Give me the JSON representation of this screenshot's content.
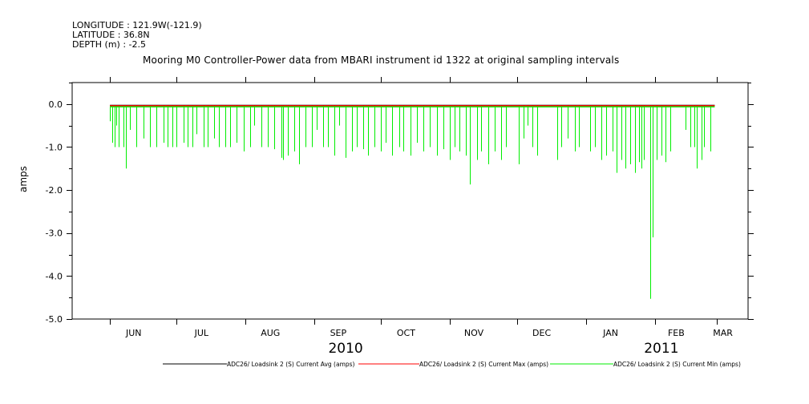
{
  "header": {
    "longitude": "LONGITUDE : 121.9W(-121.9)",
    "latitude": "LATITUDE : 36.8N",
    "depth": "DEPTH (m) : -2.5"
  },
  "chart_data": {
    "type": "line",
    "title": "Mooring M0 Controller-Power data from MBARI instrument id 1322 at original sampling intervals",
    "ylabel": "amps",
    "xlabel": "",
    "ylim": [
      -5.0,
      0.5
    ],
    "yticks": [
      "0.0",
      "-1.0",
      "-2.0",
      "-3.0",
      "-4.0",
      "-5.0"
    ],
    "ytick_values": [
      0,
      -1,
      -2,
      -3,
      -4,
      -5
    ],
    "month_labels": [
      "JUN",
      "JUL",
      "AUG",
      "SEP",
      "OCT",
      "NOV",
      "DEC",
      "JAN",
      "FEB",
      "MAR"
    ],
    "year_labels": [
      "2010",
      "2011"
    ],
    "x_range": [
      "2010-05-15",
      "2011-03-15"
    ],
    "series": [
      {
        "name": "ADC26/ Loadsink 2 (S) Current Avg (amps)",
        "color": "#000000",
        "baseline": -0.03,
        "x_range": [
          "2010-06-01",
          "2011-02-28"
        ]
      },
      {
        "name": "ADC26/ Loadsink 2 (S) Current Max (amps)",
        "color": "#ff0000",
        "baseline": -0.03,
        "x_range": [
          "2010-06-01",
          "2011-02-28"
        ]
      },
      {
        "name": "ADC26/ Loadsink 2 (S) Current Min (amps)",
        "color": "#00ee00",
        "baseline": -0.05,
        "x_range": [
          "2010-06-01",
          "2011-02-28"
        ],
        "spikes": [
          [
            "2010-06-01",
            -0.4
          ],
          [
            "2010-06-02",
            -0.9
          ],
          [
            "2010-06-03",
            -1.0
          ],
          [
            "2010-06-04",
            -0.5
          ],
          [
            "2010-06-05",
            -1.0
          ],
          [
            "2010-06-07",
            -1.0
          ],
          [
            "2010-06-08",
            -1.5
          ],
          [
            "2010-06-10",
            -0.6
          ],
          [
            "2010-06-13",
            -1.0
          ],
          [
            "2010-06-16",
            -0.8
          ],
          [
            "2010-06-19",
            -1.0
          ],
          [
            "2010-06-22",
            -1.0
          ],
          [
            "2010-06-25",
            -0.9
          ],
          [
            "2010-06-27",
            -1.0
          ],
          [
            "2010-06-29",
            -1.0
          ],
          [
            "2010-07-01",
            -1.0
          ],
          [
            "2010-07-04",
            -0.9
          ],
          [
            "2010-07-06",
            -1.0
          ],
          [
            "2010-07-08",
            -1.0
          ],
          [
            "2010-07-10",
            -0.7
          ],
          [
            "2010-07-13",
            -1.0
          ],
          [
            "2010-07-15",
            -1.0
          ],
          [
            "2010-07-18",
            -0.8
          ],
          [
            "2010-07-20",
            -1.0
          ],
          [
            "2010-07-23",
            -1.0
          ],
          [
            "2010-07-25",
            -1.0
          ],
          [
            "2010-07-28",
            -0.9
          ],
          [
            "2010-07-31",
            -1.1
          ],
          [
            "2010-08-03",
            -1.0
          ],
          [
            "2010-08-05",
            -0.5
          ],
          [
            "2010-08-08",
            -1.0
          ],
          [
            "2010-08-11",
            -1.0
          ],
          [
            "2010-08-14",
            -1.05
          ],
          [
            "2010-08-17",
            -1.25
          ],
          [
            "2010-08-18",
            -1.3
          ],
          [
            "2010-08-20",
            -1.2
          ],
          [
            "2010-08-23",
            -1.1
          ],
          [
            "2010-08-25",
            -1.4
          ],
          [
            "2010-08-28",
            -1.0
          ],
          [
            "2010-08-31",
            -1.0
          ],
          [
            "2010-09-02",
            -0.6
          ],
          [
            "2010-09-05",
            -1.0
          ],
          [
            "2010-09-07",
            -1.0
          ],
          [
            "2010-09-10",
            -1.2
          ],
          [
            "2010-09-12",
            -0.5
          ],
          [
            "2010-09-15",
            -1.25
          ],
          [
            "2010-09-18",
            -1.1
          ],
          [
            "2010-09-20",
            -1.0
          ],
          [
            "2010-09-23",
            -1.05
          ],
          [
            "2010-09-25",
            -1.2
          ],
          [
            "2010-09-28",
            -1.0
          ],
          [
            "2010-10-01",
            -1.1
          ],
          [
            "2010-10-03",
            -0.9
          ],
          [
            "2010-10-06",
            -1.2
          ],
          [
            "2010-10-09",
            -1.0
          ],
          [
            "2010-10-11",
            -1.1
          ],
          [
            "2010-10-14",
            -1.2
          ],
          [
            "2010-10-17",
            -0.9
          ],
          [
            "2010-10-20",
            -1.1
          ],
          [
            "2010-10-23",
            -1.0
          ],
          [
            "2010-10-26",
            -1.2
          ],
          [
            "2010-10-29",
            -1.05
          ],
          [
            "2010-11-01",
            -1.3
          ],
          [
            "2010-11-03",
            -1.0
          ],
          [
            "2010-11-05",
            -1.1
          ],
          [
            "2010-11-08",
            -1.2
          ],
          [
            "2010-11-10",
            -1.87
          ],
          [
            "2010-11-13",
            -1.3
          ],
          [
            "2010-11-15",
            -1.1
          ],
          [
            "2010-11-18",
            -1.4
          ],
          [
            "2010-11-21",
            -1.1
          ],
          [
            "2010-11-24",
            -1.3
          ],
          [
            "2010-11-26",
            -1.0
          ],
          [
            "2010-12-02",
            -1.4
          ],
          [
            "2010-12-04",
            -0.8
          ],
          [
            "2010-12-06",
            -0.5
          ],
          [
            "2010-12-08",
            -1.0
          ],
          [
            "2010-12-10",
            -1.2
          ],
          [
            "2010-12-19",
            -1.3
          ],
          [
            "2010-12-21",
            -1.0
          ],
          [
            "2010-12-24",
            -0.8
          ],
          [
            "2010-12-27",
            -1.1
          ],
          [
            "2010-12-29",
            -1.0
          ],
          [
            "2011-01-03",
            -1.1
          ],
          [
            "2011-01-05",
            -1.0
          ],
          [
            "2011-01-08",
            -1.3
          ],
          [
            "2011-01-10",
            -1.2
          ],
          [
            "2011-01-13",
            -1.1
          ],
          [
            "2011-01-15",
            -1.6
          ],
          [
            "2011-01-17",
            -1.3
          ],
          [
            "2011-01-19",
            -1.5
          ],
          [
            "2011-01-21",
            -1.4
          ],
          [
            "2011-01-23",
            -1.6
          ],
          [
            "2011-01-25",
            -1.35
          ],
          [
            "2011-01-26",
            -1.5
          ],
          [
            "2011-01-27",
            -1.3
          ],
          [
            "2011-01-30",
            -4.53
          ],
          [
            "2011-01-31",
            -3.1
          ],
          [
            "2011-02-02",
            -1.3
          ],
          [
            "2011-02-04",
            -1.2
          ],
          [
            "2011-02-06",
            -1.35
          ],
          [
            "2011-02-08",
            -1.1
          ],
          [
            "2011-02-15",
            -0.6
          ],
          [
            "2011-02-17",
            -1.0
          ],
          [
            "2011-02-19",
            -1.0
          ],
          [
            "2011-02-20",
            -1.5
          ],
          [
            "2011-02-22",
            -1.3
          ],
          [
            "2011-02-23",
            -1.0
          ],
          [
            "2011-02-26",
            -1.1
          ]
        ]
      }
    ],
    "grid": false,
    "legend_position": "bottom"
  }
}
